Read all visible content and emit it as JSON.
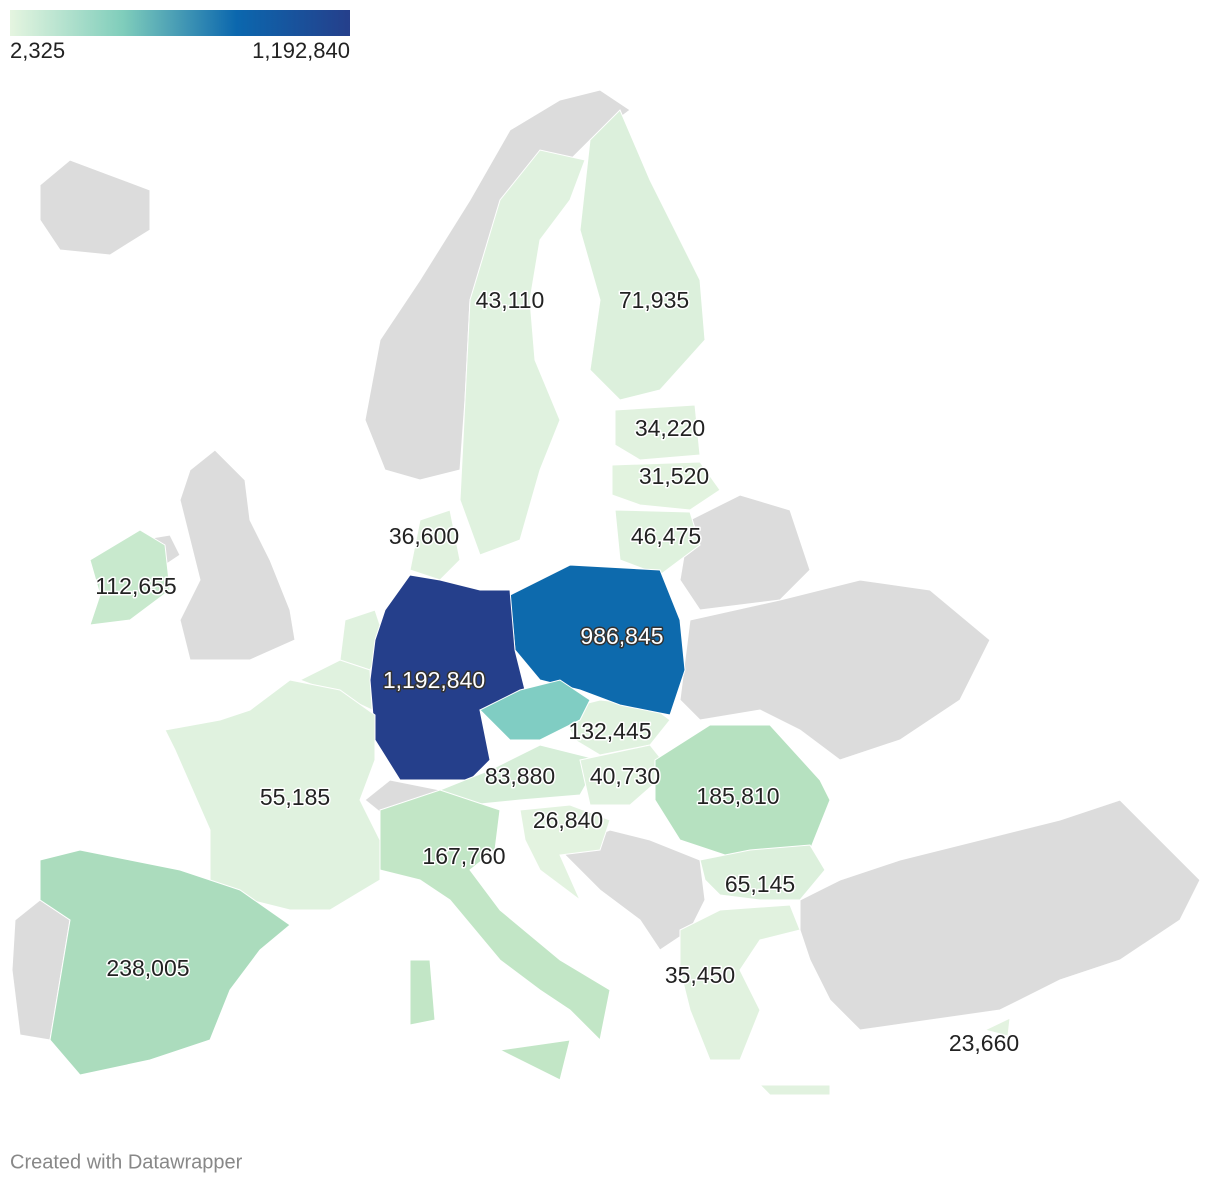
{
  "legend": {
    "min": {
      "value": 2325,
      "label": "2,325"
    },
    "max": {
      "value": 1192840,
      "label": "1,192,840"
    },
    "colors": [
      "#e5f5e0",
      "#7fcdbb",
      "#0b67ae",
      "#253f8b"
    ]
  },
  "regions": [
    {
      "value": 43110,
      "label": "43,110",
      "color": "#e0f2df"
    },
    {
      "value": 71935,
      "label": "71,935",
      "color": "#dcf0dc"
    },
    {
      "value": 34220,
      "label": "34,220",
      "color": "#e1f2df"
    },
    {
      "value": 31520,
      "label": "31,520",
      "color": "#e2f3df"
    },
    {
      "value": 46475,
      "label": "46,475",
      "color": "#dff2de"
    },
    {
      "value": 36600,
      "label": "36,600",
      "color": "#e1f2df"
    },
    {
      "value": 112655,
      "label": "112,655",
      "color": "#c8e9cd"
    },
    {
      "value": 986845,
      "label": "986,845",
      "color": "#0d6aad"
    },
    {
      "value": 1192840,
      "label": "1,192,840",
      "color": "#253f8b"
    },
    {
      "value": 132445,
      "label": "132,445",
      "color": "#80cdc3"
    },
    {
      "value": 83880,
      "label": "83,880",
      "color": "#d6eed8"
    },
    {
      "value": 40730,
      "label": "40,730",
      "color": "#e0f2df"
    },
    {
      "value": 185810,
      "label": "185,810",
      "color": "#b6e1c0"
    },
    {
      "value": 55185,
      "label": "55,185",
      "color": "#e0f2df"
    },
    {
      "value": 26840,
      "label": "26,840",
      "color": "#e3f3e0"
    },
    {
      "value": 167760,
      "label": "167,760",
      "color": "#c2e6c6"
    },
    {
      "value": 65145,
      "label": "65,145",
      "color": "#dcf0dc"
    },
    {
      "value": 238005,
      "label": "238,005",
      "color": "#abdcbd"
    },
    {
      "value": 35450,
      "label": "35,450",
      "color": "#e1f2df"
    },
    {
      "value": 23660,
      "label": "23,660",
      "color": "#e3f3e0"
    }
  ],
  "footer": "Created with Datawrapper"
}
